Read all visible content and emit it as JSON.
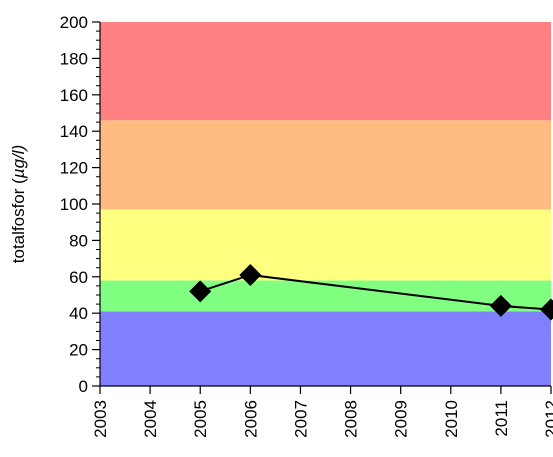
{
  "chart_data": {
    "type": "line",
    "title": "",
    "xlabel": "",
    "ylabel": "totalfosfor (µg/l)",
    "ylabel_parts": {
      "prefix": "totalfosfor (",
      "unit_symbol": "µ",
      "unit_rest": "g/l)"
    },
    "xlim": [
      2003,
      2012
    ],
    "ylim": [
      0,
      200
    ],
    "x_ticks": [
      "2003",
      "2004",
      "2005",
      "2006",
      "2007",
      "2008",
      "2009",
      "2010",
      "2011",
      "2012"
    ],
    "y_ticks": [
      "0",
      "20",
      "40",
      "60",
      "80",
      "100",
      "120",
      "140",
      "160",
      "180",
      "200"
    ],
    "grid": false,
    "legend": "none",
    "background_bands": [
      {
        "from": 0,
        "to": 41,
        "color": "#8080ff"
      },
      {
        "from": 41,
        "to": 58,
        "color": "#80ff80"
      },
      {
        "from": 58,
        "to": 97,
        "color": "#ffff80"
      },
      {
        "from": 97,
        "to": 146,
        "color": "#ffbb80"
      },
      {
        "from": 146,
        "to": 200,
        "color": "#ff8080"
      }
    ],
    "series": [
      {
        "marker": "diamond",
        "color": "#000000",
        "points": [
          {
            "x": 2005,
            "y": 52
          },
          {
            "x": 2006,
            "y": 61
          },
          {
            "x": 2011,
            "y": 44
          },
          {
            "x": 2012,
            "y": 42
          }
        ]
      }
    ]
  }
}
